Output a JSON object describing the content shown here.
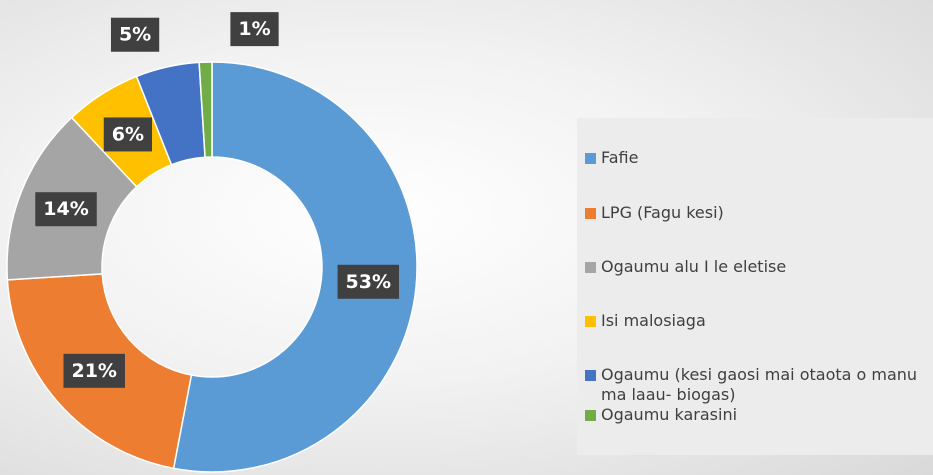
{
  "chart_data": {
    "type": "donut",
    "categories": [
      "Fafie",
      "LPG (Fagu kesi)",
      "Ogaumu alu I le eletise",
      "Isi malosiaga",
      "Ogaumu (kesi gaosi mai otaota o manu ma laau- biogas)",
      "Ogaumu karasini"
    ],
    "values": [
      53,
      21,
      14,
      6,
      5,
      1
    ],
    "value_labels": [
      "53%",
      "21%",
      "14%",
      "6%",
      "5%",
      "1%"
    ],
    "colors": [
      "#5b9bd5",
      "#ed7d31",
      "#a5a5a5",
      "#ffc000",
      "#4472c4",
      "#70ad47"
    ],
    "legend": "right"
  }
}
